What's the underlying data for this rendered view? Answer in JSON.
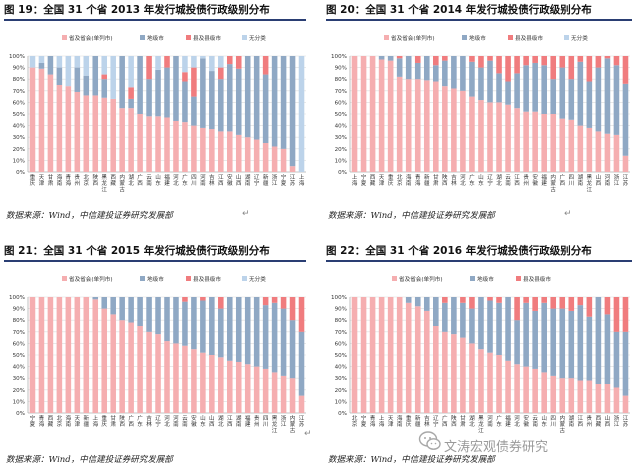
{
  "colors": {
    "provincial": "#f5aeb0",
    "city": "#8fa8c4",
    "county": "#f07c7e",
    "unclassified": "#bcd3ea",
    "rule": "#2a3e73"
  },
  "legend_labels": [
    "省及省会(单列市)",
    "地级市",
    "县及县级市",
    "无分类"
  ],
  "y_ticks": [
    "0%",
    "10%",
    "20%",
    "30%",
    "40%",
    "50%",
    "60%",
    "70%",
    "80%",
    "90%",
    "100%"
  ],
  "watermark": "文涛宏观债券研究",
  "return_mark": "↵",
  "chart_data": [
    {
      "type": "bar",
      "stacked": true,
      "title": "图 19：全国 31 个省 2013 年发行城投债行政级别分布",
      "source": "数据来源：Wind，中信建投证券研究发展部",
      "ylim": [
        0,
        100
      ],
      "legend": "top",
      "categories": [
        "重庆",
        "天津",
        "甘肃",
        "海南",
        "青海",
        "贵州",
        "北京",
        "陕西",
        "黑龙江",
        "西藏",
        "内蒙古",
        "湖北",
        "广西",
        "云南",
        "山东",
        "福建",
        "河北",
        "广东",
        "四川",
        "河南",
        "吉林",
        "江西",
        "安徽",
        "山西",
        "湖南",
        "辽宁",
        "新疆",
        "浙江",
        "宁夏",
        "江苏",
        "上海"
      ],
      "series": [
        {
          "name": "省及省会(单列市)",
          "values": [
            90,
            89,
            84,
            75,
            74,
            69,
            66,
            66,
            64,
            63,
            55,
            55,
            50,
            48,
            48,
            47,
            44,
            43,
            40,
            38,
            37,
            35,
            35,
            32,
            30,
            28,
            25,
            22,
            20,
            5,
            0
          ]
        },
        {
          "name": "地级市",
          "values": [
            0,
            5,
            16,
            15,
            0,
            21,
            17,
            34,
            16,
            0,
            45,
            8,
            50,
            32,
            40,
            43,
            56,
            35,
            25,
            60,
            50,
            45,
            58,
            57,
            70,
            72,
            59,
            78,
            80,
            95,
            0
          ]
        },
        {
          "name": "县及县级市",
          "values": [
            0,
            0,
            0,
            0,
            0,
            0,
            0,
            0,
            4,
            0,
            0,
            10,
            0,
            20,
            0,
            10,
            0,
            8,
            25,
            0,
            0,
            10,
            7,
            11,
            0,
            0,
            16,
            0,
            0,
            0,
            0
          ]
        },
        {
          "name": "无分类",
          "values": [
            10,
            6,
            0,
            10,
            26,
            10,
            17,
            0,
            16,
            37,
            0,
            27,
            0,
            0,
            12,
            0,
            0,
            14,
            10,
            2,
            13,
            10,
            0,
            0,
            0,
            0,
            0,
            0,
            0,
            0,
            100
          ]
        }
      ]
    },
    {
      "type": "bar",
      "stacked": true,
      "title": "图 20：全国 31 个省 2014 年发行城投债行政级别分布",
      "source": "数据来源：Wind，中信建投证券研究发展部",
      "ylim": [
        0,
        100
      ],
      "legend": "top",
      "categories": [
        "上海",
        "宁夏",
        "西藏",
        "天津",
        "重庆",
        "北京",
        "海南",
        "青海",
        "新疆",
        "甘肃",
        "陕西",
        "吉林",
        "河北",
        "广东",
        "山东",
        "辽宁",
        "湖北",
        "云南",
        "江西",
        "贵州",
        "安徽",
        "福建",
        "内蒙古",
        "广西",
        "四川",
        "湖南",
        "黑龙江",
        "山西",
        "河南",
        "浙江",
        "江苏"
      ],
      "series": [
        {
          "name": "省及省会(单列市)",
          "values": [
            100,
            100,
            100,
            97,
            96,
            82,
            80,
            80,
            79,
            78,
            74,
            72,
            70,
            65,
            62,
            60,
            60,
            58,
            55,
            52,
            52,
            50,
            50,
            46,
            45,
            40,
            38,
            35,
            33,
            32,
            14
          ]
        },
        {
          "name": "地级市",
          "values": [
            0,
            0,
            0,
            3,
            4,
            16,
            20,
            14,
            21,
            14,
            22,
            28,
            30,
            30,
            28,
            36,
            25,
            20,
            30,
            40,
            42,
            42,
            30,
            44,
            35,
            55,
            40,
            55,
            65,
            60,
            62
          ]
        },
        {
          "name": "县及县级市",
          "values": [
            0,
            0,
            0,
            0,
            0,
            2,
            0,
            6,
            0,
            8,
            4,
            0,
            0,
            5,
            10,
            4,
            15,
            22,
            15,
            8,
            6,
            8,
            20,
            10,
            20,
            5,
            22,
            10,
            2,
            8,
            24
          ]
        },
        {
          "name": "无分类",
          "values": [
            0,
            0,
            0,
            0,
            0,
            0,
            0,
            0,
            0,
            0,
            0,
            0,
            0,
            0,
            0,
            0,
            0,
            0,
            0,
            0,
            0,
            0,
            0,
            0,
            0,
            0,
            0,
            0,
            0,
            0,
            0
          ]
        }
      ]
    },
    {
      "type": "bar",
      "stacked": true,
      "title": "图 21：全国 31 个省 2015 年发行城投债行政级别分布",
      "source": "数据来源：Wind，中信建投证券研究发展部",
      "ylim": [
        0,
        100
      ],
      "legend": "top",
      "categories": [
        "宁夏",
        "青海",
        "西藏",
        "北京",
        "海南",
        "天津",
        "新疆",
        "上海",
        "重庆",
        "甘肃",
        "陕西",
        "广西",
        "广东",
        "吉林",
        "辽宁",
        "河北",
        "河南",
        "云南",
        "安徽",
        "山东",
        "山西",
        "湖北",
        "江西",
        "湖南",
        "福建",
        "贵州",
        "四川",
        "黑龙江",
        "浙江",
        "内蒙古",
        "江苏"
      ],
      "series": [
        {
          "name": "省及省会(单列市)",
          "values": [
            100,
            100,
            100,
            100,
            100,
            100,
            100,
            98,
            90,
            85,
            80,
            78,
            75,
            70,
            68,
            62,
            60,
            58,
            55,
            52,
            50,
            48,
            45,
            44,
            42,
            40,
            38,
            35,
            32,
            30,
            15
          ]
        },
        {
          "name": "地级市",
          "values": [
            0,
            0,
            0,
            0,
            0,
            0,
            0,
            2,
            10,
            15,
            20,
            22,
            25,
            30,
            32,
            38,
            40,
            38,
            45,
            45,
            50,
            42,
            55,
            56,
            58,
            60,
            55,
            60,
            58,
            50,
            55
          ]
        },
        {
          "name": "县及县级市",
          "values": [
            0,
            0,
            0,
            0,
            0,
            0,
            0,
            0,
            0,
            0,
            0,
            0,
            0,
            0,
            0,
            0,
            0,
            4,
            0,
            3,
            0,
            10,
            0,
            0,
            0,
            0,
            7,
            5,
            10,
            20,
            30
          ]
        },
        {
          "name": "无分类",
          "values": [
            0,
            0,
            0,
            0,
            0,
            0,
            0,
            0,
            0,
            0,
            0,
            0,
            0,
            0,
            0,
            0,
            0,
            0,
            0,
            0,
            0,
            0,
            0,
            0,
            0,
            0,
            0,
            0,
            0,
            0,
            0
          ]
        }
      ]
    },
    {
      "type": "bar",
      "stacked": true,
      "title": "图 22：全国 31 个省 2016 年发行城投债行政级别分布",
      "source": "数据来源：Wind，中信建投证券研究发展部",
      "ylim": [
        0,
        100
      ],
      "legend": "top",
      "categories": [
        "北京",
        "宁夏",
        "青海",
        "上海",
        "天津",
        "海南",
        "重庆",
        "新疆",
        "吉林",
        "辽宁",
        "广西",
        "陕西",
        "甘肃",
        "湖北",
        "黑龙江",
        "河南",
        "广东",
        "福建",
        "河北",
        "安徽",
        "云南",
        "山东",
        "四川",
        "内蒙古",
        "湖南",
        "江西",
        "贵州",
        "西藏",
        "山西",
        "浙江",
        "江苏"
      ],
      "series": [
        {
          "name": "省及省会(单列市)",
          "values": [
            100,
            100,
            100,
            100,
            100,
            100,
            95,
            92,
            88,
            75,
            70,
            68,
            65,
            60,
            55,
            52,
            50,
            45,
            42,
            40,
            38,
            35,
            32,
            30,
            30,
            28,
            28,
            25,
            25,
            22,
            15
          ]
        },
        {
          "name": "地级市",
          "values": [
            0,
            0,
            0,
            0,
            0,
            0,
            5,
            8,
            12,
            25,
            25,
            32,
            30,
            30,
            45,
            45,
            45,
            55,
            38,
            55,
            50,
            60,
            58,
            60,
            58,
            65,
            55,
            75,
            60,
            48,
            55
          ]
        },
        {
          "name": "县及县级市",
          "values": [
            0,
            0,
            0,
            0,
            0,
            0,
            0,
            0,
            0,
            0,
            5,
            0,
            5,
            10,
            0,
            3,
            5,
            0,
            20,
            5,
            12,
            5,
            10,
            10,
            12,
            7,
            17,
            0,
            15,
            30,
            30
          ]
        }
      ]
    }
  ]
}
